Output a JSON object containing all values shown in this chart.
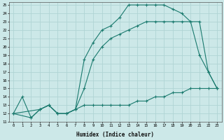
{
  "xlabel": "Humidex (Indice chaleur)",
  "bg_color": "#cce8e8",
  "grid_color": "#b0d4d4",
  "line_color": "#1a7a6e",
  "xlim": [
    -0.5,
    23.5
  ],
  "ylim": [
    11,
    25.3
  ],
  "xticks": [
    0,
    1,
    2,
    3,
    4,
    5,
    6,
    7,
    8,
    9,
    10,
    11,
    12,
    13,
    14,
    15,
    16,
    17,
    18,
    19,
    20,
    21,
    22,
    23
  ],
  "yticks": [
    11,
    12,
    13,
    14,
    15,
    16,
    17,
    18,
    19,
    20,
    21,
    22,
    23,
    24,
    25
  ],
  "line1_x": [
    0,
    1,
    2,
    3,
    4,
    5,
    6,
    7,
    8,
    9,
    10,
    11,
    12,
    13,
    14,
    15,
    16,
    17,
    18,
    19,
    20,
    21,
    22,
    23
  ],
  "line1_y": [
    12,
    14,
    11.5,
    12.5,
    13,
    12,
    12,
    12.5,
    18.5,
    20.5,
    22,
    22.5,
    23.5,
    25,
    25,
    25,
    25,
    25,
    24.5,
    24,
    23,
    19,
    17,
    15
  ],
  "line2_x": [
    0,
    2,
    3,
    4,
    5,
    6,
    7,
    8,
    9,
    10,
    11,
    12,
    13,
    14,
    15,
    16,
    17,
    18,
    19,
    20,
    21,
    22,
    23
  ],
  "line2_y": [
    12,
    11.5,
    12.5,
    13,
    12,
    12,
    12.5,
    13,
    13,
    13,
    13,
    13,
    13,
    13.5,
    13.5,
    14,
    14,
    14.5,
    14.5,
    15,
    15,
    15,
    15
  ],
  "line3_x": [
    0,
    3,
    4,
    5,
    6,
    7,
    8,
    9,
    10,
    11,
    12,
    13,
    14,
    15,
    16,
    17,
    18,
    19,
    20,
    21,
    22,
    23
  ],
  "line3_y": [
    12,
    12.5,
    13,
    12,
    12,
    12.5,
    15,
    18.5,
    20,
    21,
    21.5,
    22,
    22.5,
    23,
    23,
    23,
    23,
    23,
    23,
    23,
    17,
    15
  ]
}
